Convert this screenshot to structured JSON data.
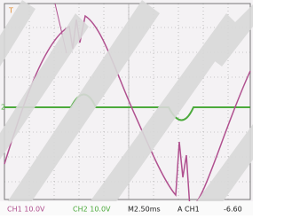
{
  "status_bar": {
    "ch1": "CH1 10.0V",
    "ch2": "CH2 10.0V",
    "timebase": "M2.50ms",
    "trigger_source": "A CH1",
    "trigger_level": "-6.60"
  },
  "markers": {
    "trigger": "T",
    "ch2": "2"
  }
}
